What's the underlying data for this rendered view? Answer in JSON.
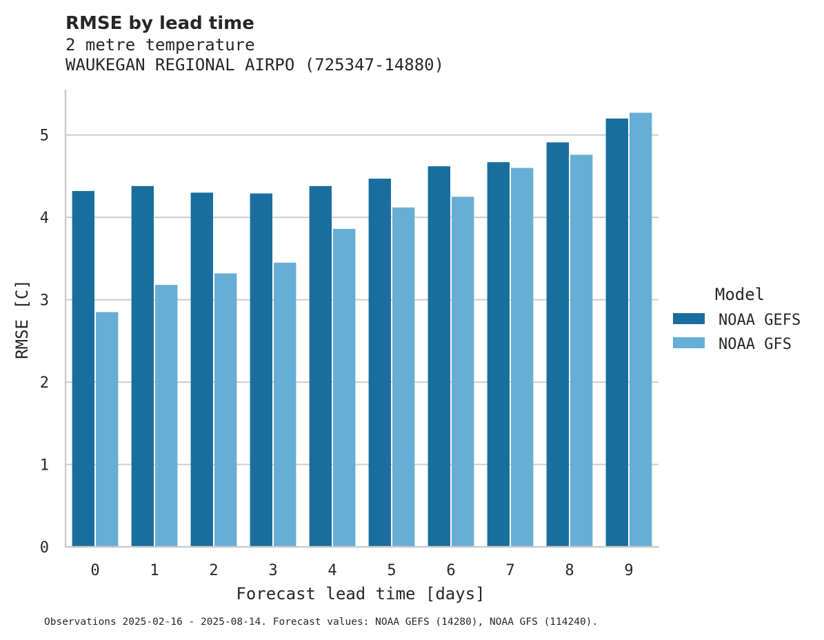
{
  "chart_data": {
    "type": "bar",
    "title": "RMSE by lead time",
    "subtitle_lines": [
      "2 metre temperature",
      "WAUKEGAN REGIONAL AIRPO (725347-14880)"
    ],
    "xlabel": "Forecast lead time [days]",
    "ylabel": "RMSE [C]",
    "categories": [
      "0",
      "1",
      "2",
      "3",
      "4",
      "5",
      "6",
      "7",
      "8",
      "9"
    ],
    "series": [
      {
        "name": "NOAA GEFS",
        "color": "#1a6e9e",
        "values": [
          4.32,
          4.38,
          4.3,
          4.29,
          4.38,
          4.47,
          4.62,
          4.67,
          4.91,
          5.2
        ]
      },
      {
        "name": "NOAA GFS",
        "color": "#67aed6",
        "values": [
          2.85,
          3.18,
          3.32,
          3.45,
          3.86,
          4.12,
          4.25,
          4.6,
          4.76,
          5.27
        ]
      }
    ],
    "ylim": [
      0,
      5.55
    ],
    "yticks": [
      "0",
      "1",
      "2",
      "3",
      "4",
      "5"
    ],
    "grid": true,
    "legend": {
      "title": "Model",
      "placement": "right"
    },
    "footnote": "Observations 2025-02-16 - 2025-08-14. Forecast values: NOAA GEFS (14280), NOAA GFS (114240)."
  }
}
